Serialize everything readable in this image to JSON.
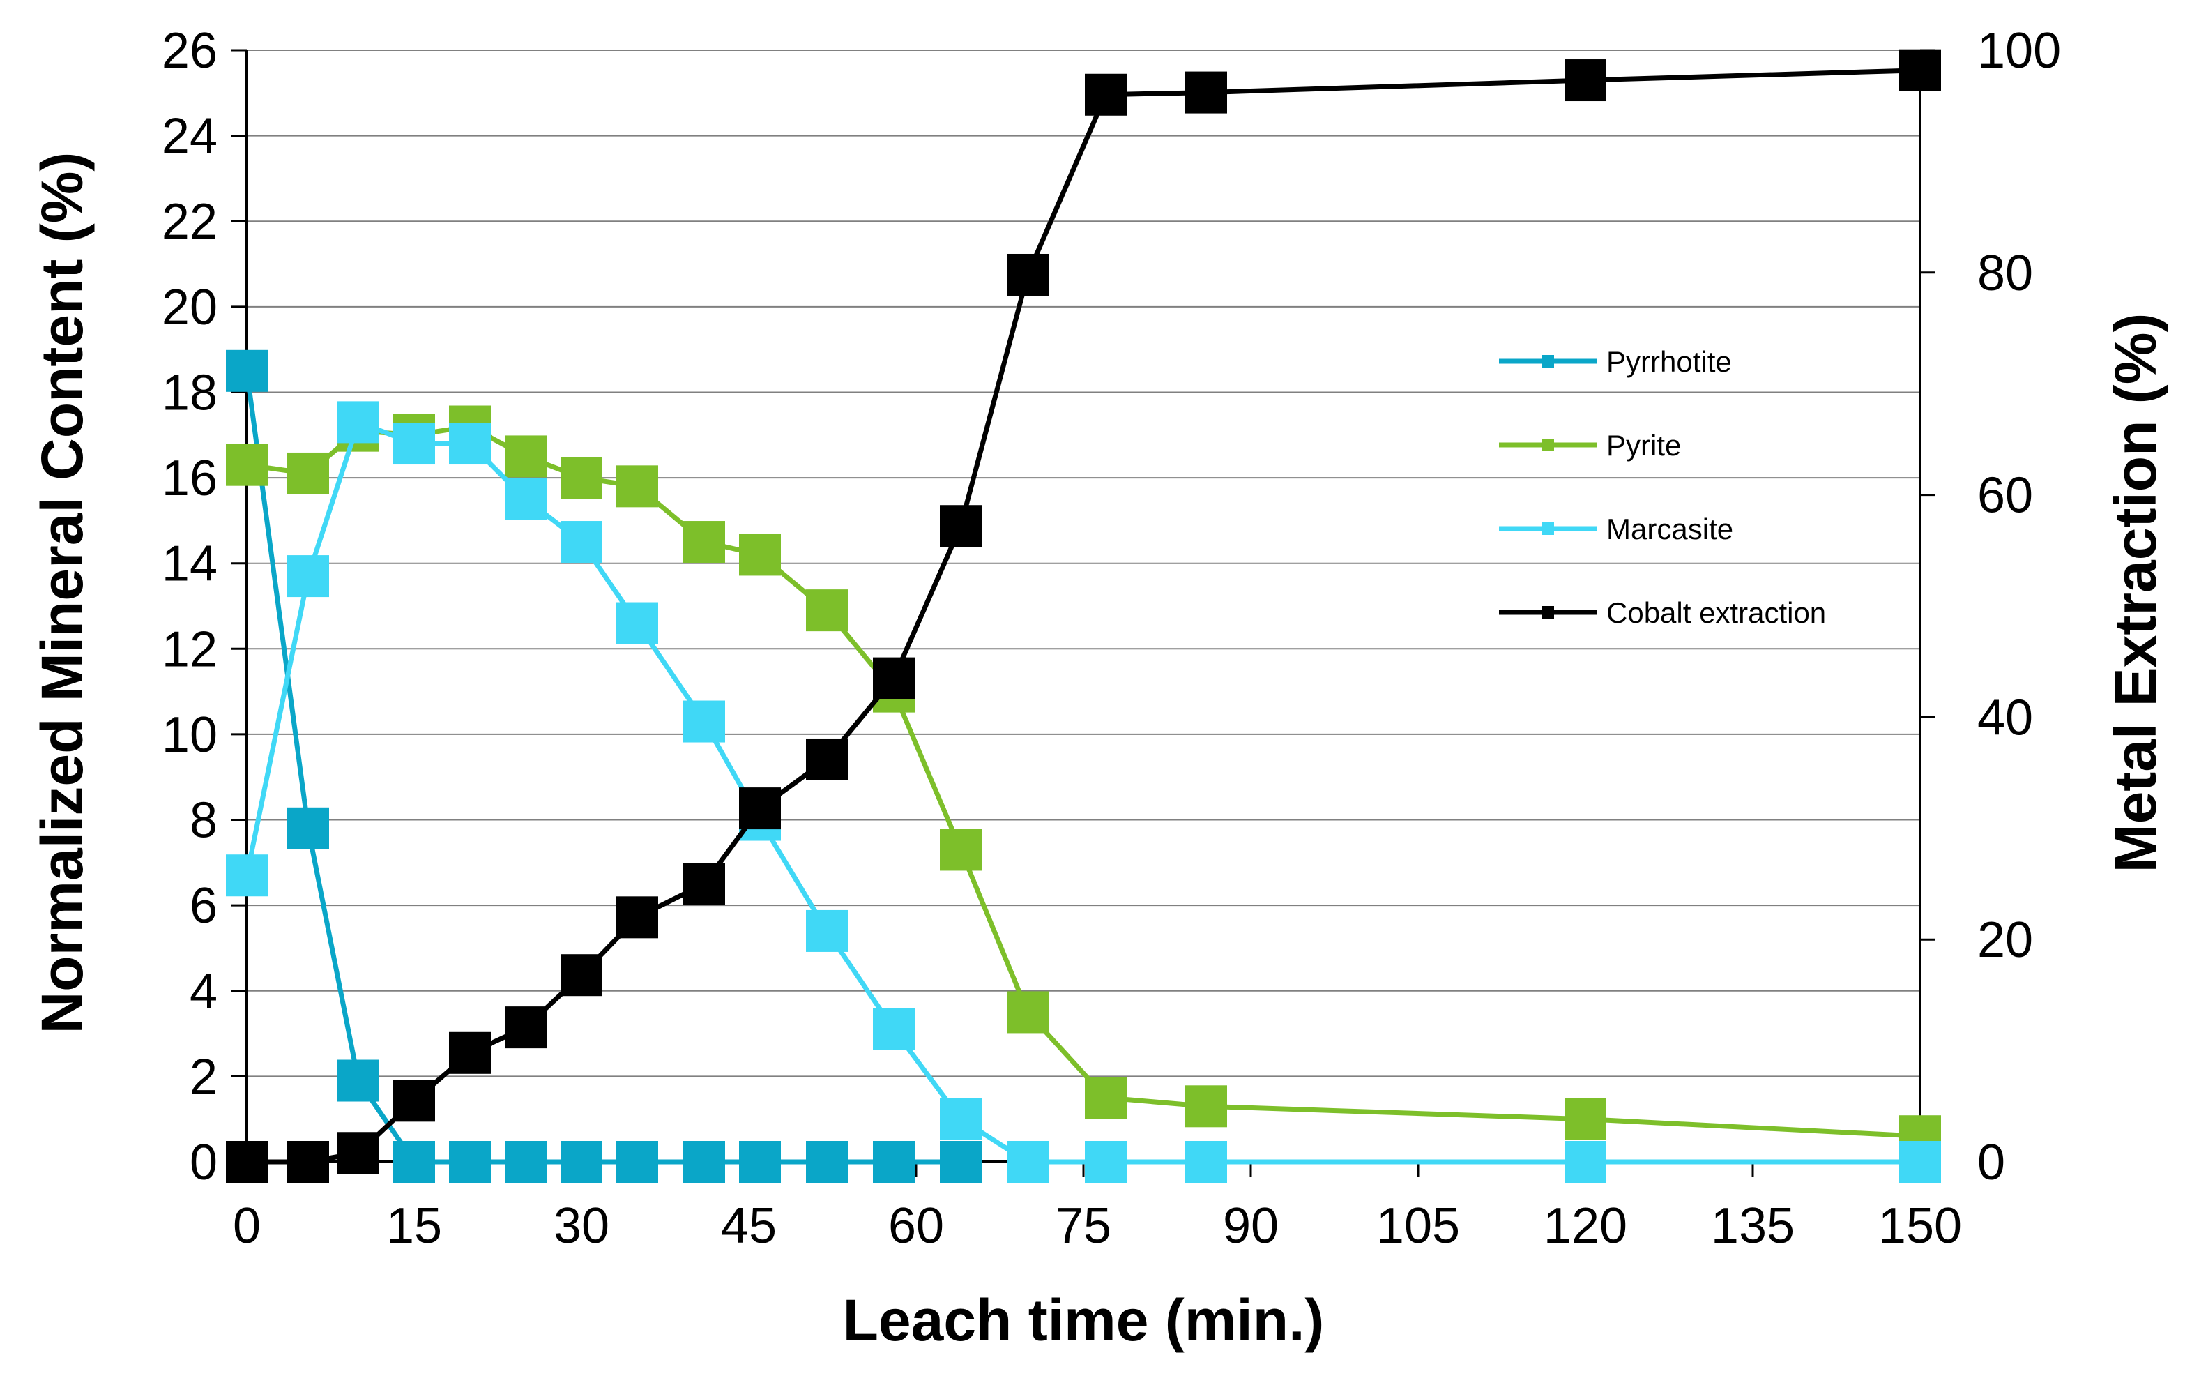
{
  "chart_data": {
    "type": "line",
    "title": "",
    "xlabel": "Leach time (min.)",
    "ylabel": "Normalized Mineral Content (%)",
    "y2label": "Metal Extraction (%)",
    "xlim": [
      0,
      150
    ],
    "ylim": [
      0,
      26
    ],
    "y2lim": [
      0,
      100
    ],
    "xticks": [
      0,
      15,
      30,
      45,
      60,
      75,
      90,
      105,
      120,
      135,
      150
    ],
    "yticks": [
      0,
      2,
      4,
      6,
      8,
      10,
      12,
      14,
      16,
      18,
      20,
      22,
      24,
      26
    ],
    "y2ticks": [
      0,
      20,
      40,
      60,
      80,
      100
    ],
    "grid": "horizontal",
    "legend_position": "right-middle",
    "series": [
      {
        "name": "Pyrrhotite",
        "axis": "left",
        "color": "#0aa6c8",
        "x": [
          0,
          5.5,
          10,
          15,
          20,
          25,
          30,
          35,
          41,
          46,
          52,
          58,
          64
        ],
        "y": [
          18.5,
          7.8,
          1.9,
          0,
          0,
          0,
          0,
          0,
          0,
          0,
          0,
          0,
          0
        ]
      },
      {
        "name": "Pyrite",
        "axis": "left",
        "color": "#7dbf2a",
        "x": [
          0,
          5.5,
          10,
          15,
          20,
          25,
          30,
          35,
          41,
          46,
          52,
          58,
          64,
          70,
          77,
          86,
          120,
          150
        ],
        "y": [
          16.3,
          16.1,
          17.1,
          17.0,
          17.2,
          16.5,
          16.0,
          15.8,
          14.5,
          14.2,
          12.9,
          11.0,
          7.3,
          3.5,
          1.5,
          1.3,
          1.0,
          0.6
        ]
      },
      {
        "name": "Marcasite",
        "axis": "left",
        "color": "#40d8f6",
        "x": [
          0,
          5.5,
          10,
          15,
          20,
          25,
          30,
          35,
          41,
          46,
          52,
          58,
          64,
          70,
          77,
          86,
          120,
          150
        ],
        "y": [
          6.7,
          13.7,
          17.3,
          16.8,
          16.8,
          15.5,
          14.5,
          12.6,
          10.3,
          8.0,
          5.4,
          3.1,
          1.0,
          0,
          0,
          0,
          0,
          0
        ]
      },
      {
        "name": "Cobalt extraction",
        "axis": "right",
        "color": "#000000",
        "x": [
          0,
          5.5,
          10,
          15,
          20,
          25,
          30,
          35,
          41,
          46,
          52,
          58,
          64,
          70,
          77,
          86,
          120,
          150
        ],
        "y": [
          0,
          0,
          0.8,
          5.5,
          9.8,
          12.1,
          16.8,
          22.0,
          25.0,
          31.8,
          36.2,
          43.5,
          57.2,
          79.8,
          96.0,
          96.2,
          97.3,
          98.2
        ]
      }
    ]
  }
}
